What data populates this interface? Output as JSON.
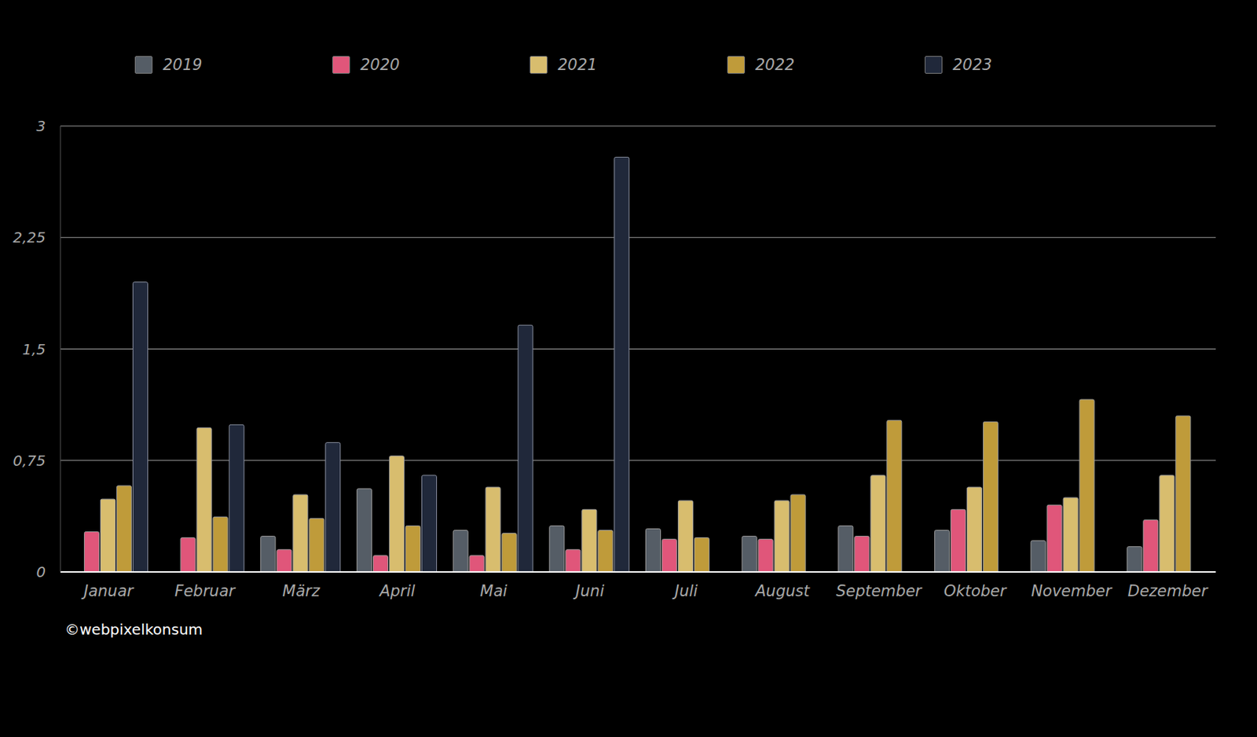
{
  "chart_data": {
    "type": "bar",
    "categories": [
      "Januar",
      "Februar",
      "März",
      "April",
      "Mai",
      "Juni",
      "Juli",
      "August",
      "September",
      "Oktober",
      "November",
      "Dezember"
    ],
    "series": [
      {
        "name": "2019",
        "color": "#555d66",
        "values": [
          null,
          null,
          0.24,
          0.56,
          0.28,
          0.31,
          0.29,
          0.24,
          0.31,
          0.28,
          0.21,
          0.17
        ]
      },
      {
        "name": "2020",
        "color": "#e0567a",
        "values": [
          0.27,
          0.23,
          0.15,
          0.11,
          0.11,
          0.15,
          0.22,
          0.22,
          0.24,
          0.42,
          0.45,
          0.35
        ]
      },
      {
        "name": "2021",
        "color": "#d8bd6e",
        "values": [
          0.49,
          0.97,
          0.52,
          0.78,
          0.57,
          0.42,
          0.48,
          0.48,
          0.65,
          0.57,
          0.5,
          0.65
        ]
      },
      {
        "name": "2022",
        "color": "#bf9b3a",
        "values": [
          0.58,
          0.37,
          0.36,
          0.31,
          0.26,
          0.28,
          0.23,
          0.52,
          1.02,
          1.01,
          1.16,
          1.05
        ]
      },
      {
        "name": "2023",
        "color": "#20283a",
        "values": [
          1.95,
          0.99,
          0.87,
          0.65,
          1.66,
          2.79,
          null,
          null,
          null,
          null,
          null,
          null
        ]
      }
    ],
    "ylim": [
      0,
      3
    ],
    "yticks": [
      0,
      {
        "value": 0.75,
        "label": "0,75"
      },
      {
        "value": 1.5,
        "label": "1,5"
      },
      {
        "value": 2.25,
        "label": "2,25"
      },
      3
    ],
    "grid": true,
    "legend": "top",
    "annotations": [
      "©webpixelkonsum"
    ]
  }
}
